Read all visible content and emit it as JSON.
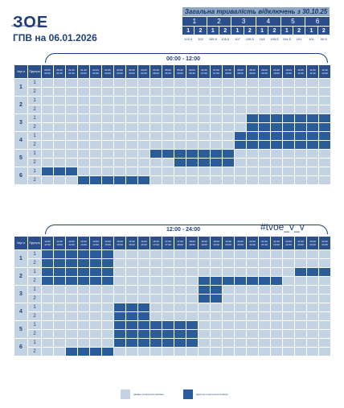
{
  "logo": {
    "mark": "ЗОЕ",
    "subtitle": "ЗАПОРІЖЖЯОБЛЕНЕРГО"
  },
  "page_title": "ГПВ на 06.01.2026",
  "stats": {
    "title": "Загальна тривалість відключень з 30.10.25",
    "queues": [
      "1",
      "2",
      "3",
      "4",
      "5",
      "6"
    ],
    "subqueues": [
      "1",
      "2",
      "1",
      "2",
      "1",
      "2",
      "1",
      "2",
      "1",
      "2",
      "1",
      "2"
    ],
    "values": [
      "102.5",
      "102",
      "105.5",
      "105.5",
      "107",
      "106.5",
      "104",
      "105.5",
      "104.5",
      "101",
      "101",
      "99.5"
    ]
  },
  "headers": {
    "queue": "Черг а",
    "subqueue": "Підчерга"
  },
  "am": {
    "range": "00:00 - 12:00",
    "times": [
      "00:00 00:30",
      "00:30 01:00",
      "01:00 01:30",
      "01:30 02:00",
      "02:00 02:30",
      "02:30 03:00",
      "03:00 03:30",
      "03:30 04:00",
      "04:00 04:30",
      "04:30 05:00",
      "05:00 05:30",
      "05:30 06:00",
      "06:00 06:30",
      "06:30 07:00",
      "07:00 07:30",
      "07:30 08:00",
      "08:00 08:30",
      "08:30 09:00",
      "09:00 09:30",
      "09:30 10:00",
      "10:00 10:30",
      "10:30 11:00",
      "11:00 11:30",
      "11:30 12:00"
    ],
    "queues": [
      {
        "q": "1",
        "subs": [
          {
            "s": "1",
            "off": []
          },
          {
            "s": "2",
            "off": []
          }
        ]
      },
      {
        "q": "2",
        "subs": [
          {
            "s": "1",
            "off": []
          },
          {
            "s": "2",
            "off": []
          }
        ]
      },
      {
        "q": "3",
        "subs": [
          {
            "s": "1",
            "off": [
              17,
              18,
              19,
              20,
              21,
              22,
              23
            ]
          },
          {
            "s": "2",
            "off": [
              17,
              18,
              19,
              20,
              21,
              22,
              23
            ]
          }
        ]
      },
      {
        "q": "4",
        "subs": [
          {
            "s": "1",
            "off": [
              16,
              17,
              18,
              19,
              20,
              21,
              22,
              23
            ]
          },
          {
            "s": "2",
            "off": [
              16,
              17,
              18,
              19,
              20,
              21,
              22,
              23
            ]
          }
        ]
      },
      {
        "q": "5",
        "subs": [
          {
            "s": "1",
            "off": [
              9,
              10,
              11,
              12,
              13,
              14,
              15
            ]
          },
          {
            "s": "2",
            "off": [
              11,
              12,
              13,
              14,
              15
            ]
          }
        ]
      },
      {
        "q": "6",
        "subs": [
          {
            "s": "1",
            "off": [
              0,
              1,
              2
            ]
          },
          {
            "s": "2",
            "off": [
              3,
              4,
              5,
              6,
              7,
              8
            ]
          }
        ]
      }
    ]
  },
  "pm": {
    "range": "12:00 - 24:00",
    "times": [
      "12:00 12:30",
      "12:30 13:00",
      "13:00 13:30",
      "13:30 14:00",
      "14:00 14:30",
      "14:30 15:00",
      "15:00 15:30",
      "15:30 16:00",
      "16:00 16:30",
      "16:30 17:00",
      "17:00 17:30",
      "17:30 18:00",
      "18:00 18:30",
      "18:30 19:00",
      "19:00 19:30",
      "19:30 20:00",
      "20:00 20:30",
      "20:30 21:00",
      "21:00 21:30",
      "21:30 22:00",
      "22:00 22:30",
      "22:30 23:00",
      "23:00 23:30",
      "23:30 24:00"
    ],
    "queues": [
      {
        "q": "1",
        "subs": [
          {
            "s": "1",
            "off": [
              0,
              1,
              2,
              3,
              4,
              5
            ]
          },
          {
            "s": "2",
            "off": [
              0,
              1,
              2,
              3,
              4,
              5
            ]
          }
        ]
      },
      {
        "q": "2",
        "subs": [
          {
            "s": "1",
            "off": [
              0,
              1,
              2,
              3,
              4,
              5,
              21,
              22,
              23
            ]
          },
          {
            "s": "2",
            "off": [
              0,
              1,
              2,
              3,
              4,
              5,
              13,
              14,
              15,
              16,
              17,
              18,
              19
            ]
          }
        ]
      },
      {
        "q": "3",
        "subs": [
          {
            "s": "1",
            "off": [
              13,
              14
            ]
          },
          {
            "s": "2",
            "off": [
              13,
              14
            ]
          }
        ]
      },
      {
        "q": "4",
        "subs": [
          {
            "s": "1",
            "off": [
              6,
              7,
              8
            ]
          },
          {
            "s": "2",
            "off": [
              6,
              7,
              8
            ]
          }
        ]
      },
      {
        "q": "5",
        "subs": [
          {
            "s": "1",
            "off": [
              6,
              7,
              8,
              9,
              10,
              11,
              12
            ]
          },
          {
            "s": "2",
            "off": [
              6,
              7,
              8,
              9,
              10,
              11,
              12
            ]
          }
        ]
      },
      {
        "q": "6",
        "subs": [
          {
            "s": "1",
            "off": [
              6,
              7,
              8,
              9,
              10,
              11,
              12
            ]
          },
          {
            "s": "2",
            "off": [
              2,
              3,
              4,
              5
            ]
          }
        ]
      }
    ]
  },
  "watermark": "#tvoe_v_v",
  "legend": {
    "on_label": "наявне електропостачання",
    "off_label": "відсутнє електропостачання",
    "on_color": "#c4d3e3",
    "off_color": "#2a5c9a"
  }
}
